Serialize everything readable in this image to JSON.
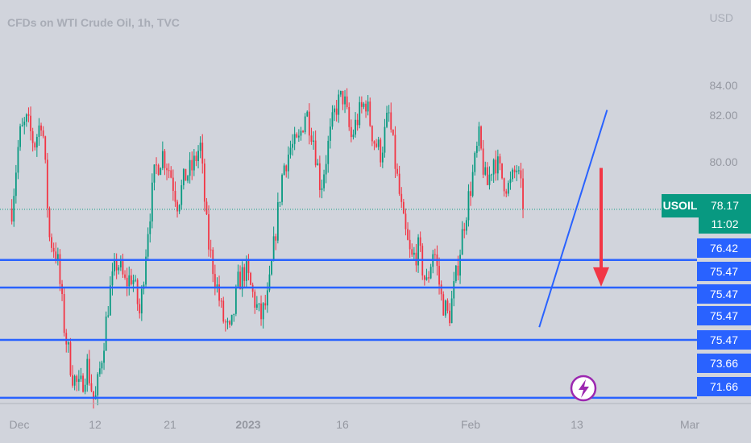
{
  "header": {
    "title": "CFDs on WTI Crude Oil, 1h, TVC",
    "unit": "USD"
  },
  "price_tag": {
    "symbol": "USOIL",
    "price": "78.17",
    "countdown": "11:02"
  },
  "level_labels": [
    "76.42",
    "75.47",
    "75.47",
    "75.47",
    "75.47",
    "73.66",
    "71.66"
  ],
  "colors": {
    "background": "#d1d4dc",
    "up": "#089981",
    "down": "#f23645",
    "level_line": "#2962ff",
    "arrow": "#f23645",
    "lightning": "#9c27b0"
  },
  "icons": {
    "alert": "lightning-bolt-icon"
  },
  "chart_data": {
    "type": "candlestick",
    "title": "CFDs on WTI Crude Oil, 1h, TVC",
    "currency": "USD",
    "y_ticks": [
      84.0,
      82.0,
      80.0
    ],
    "y_tick_labels": [
      "84.00",
      "82.00",
      "80.00"
    ],
    "x_ticks": [
      "Dec",
      "12",
      "21",
      "2023",
      "16",
      "Feb",
      "13",
      "Mar"
    ],
    "ylim": [
      70.1,
      85.4
    ],
    "grid": false,
    "last_price": 78.17,
    "horizontal_levels": [
      76.42,
      75.47,
      73.66,
      71.66
    ],
    "trendline": {
      "from": [
        "Feb 8",
        74.1
      ],
      "to": [
        "Feb 17",
        81.6
      ]
    },
    "arrow": {
      "direction": "down",
      "from_price": 79.6,
      "to_price": 75.5
    },
    "series": [
      {
        "close_path": [
          [
            "Nov 30",
            78.2
          ],
          [
            "Dec 1",
            80.7
          ],
          [
            "Dec 2",
            81.2
          ],
          [
            "Dec 3",
            80.4
          ],
          [
            "Dec 4",
            81.4
          ],
          [
            "Dec 5",
            77.2
          ],
          [
            "Dec 6",
            76.6
          ],
          [
            "Dec 7",
            74.0
          ],
          [
            "Dec 8",
            72.5
          ],
          [
            "Dec 9",
            71.9
          ],
          [
            "Dec 10",
            72.8
          ],
          [
            "Dec 11",
            71.4
          ],
          [
            "Dec 12",
            73.2
          ],
          [
            "Dec 13",
            75.3
          ],
          [
            "Dec 14",
            76.4
          ],
          [
            "Dec 15",
            75.6
          ],
          [
            "Dec 16",
            75.9
          ],
          [
            "Dec 17",
            74.5
          ],
          [
            "Dec 18",
            77.4
          ],
          [
            "Dec 19",
            79.5
          ],
          [
            "Dec 20",
            80.1
          ],
          [
            "Dec 21",
            79.5
          ],
          [
            "Dec 22",
            78.4
          ],
          [
            "Dec 23",
            79.3
          ],
          [
            "Dec 24",
            79.6
          ],
          [
            "Dec 25",
            80.4
          ],
          [
            "Dec 26",
            77.1
          ],
          [
            "Dec 27",
            75.8
          ],
          [
            "Dec 28",
            74.4
          ],
          [
            "Dec 29",
            73.8
          ],
          [
            "Dec 30",
            75.6
          ],
          [
            "Dec 31",
            76.1
          ],
          [
            "Jan 1",
            75.2
          ],
          [
            "Jan 2",
            74.4
          ],
          [
            "Jan 3",
            75.1
          ],
          [
            "Jan 4",
            77.4
          ],
          [
            "Jan 5",
            79.6
          ],
          [
            "Jan 6",
            80.3
          ],
          [
            "Jan 7",
            80.4
          ],
          [
            "Jan 8",
            81.6
          ],
          [
            "Jan 9",
            80.7
          ],
          [
            "Jan 10",
            78.9
          ],
          [
            "Jan 11",
            80.4
          ],
          [
            "Jan 12",
            81.7
          ],
          [
            "Jan 13",
            82.1
          ],
          [
            "Jan 14",
            80.6
          ],
          [
            "Jan 15",
            81.4
          ],
          [
            "Jan 16",
            81.9
          ],
          [
            "Jan 17",
            80.6
          ],
          [
            "Jan 18",
            80.1
          ],
          [
            "Jan 19",
            81.5
          ],
          [
            "Jan 20",
            79.5
          ],
          [
            "Jan 21",
            77.6
          ],
          [
            "Jan 22",
            76.4
          ],
          [
            "Jan 23",
            76.8
          ],
          [
            "Jan 24",
            75.5
          ],
          [
            "Jan 25",
            76.9
          ],
          [
            "Jan 26",
            75.1
          ],
          [
            "Jan 27",
            74.4
          ],
          [
            "Jan 28",
            75.9
          ],
          [
            "Jan 29",
            77.7
          ],
          [
            "Jan 30",
            79.1
          ],
          [
            "Jan 31",
            80.6
          ],
          [
            "Feb 1",
            78.9
          ],
          [
            "Feb 2",
            80.0
          ],
          [
            "Feb 3",
            79.3
          ],
          [
            "Feb 4",
            78.9
          ],
          [
            "Feb 5",
            79.6
          ],
          [
            "Feb 6",
            78.2
          ]
        ]
      }
    ]
  }
}
